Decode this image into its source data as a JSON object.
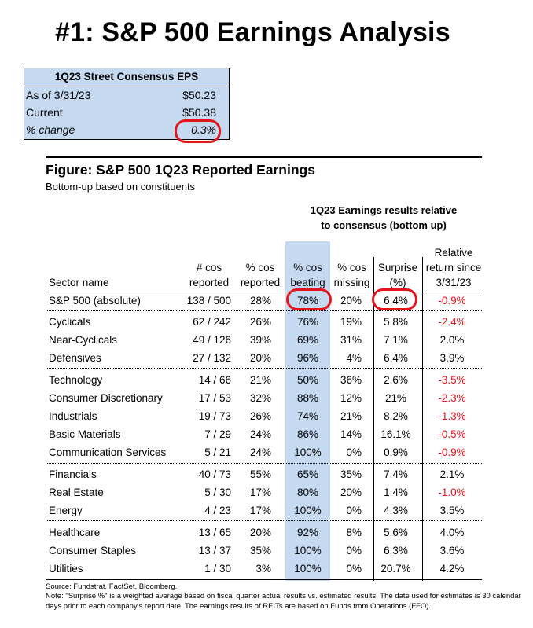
{
  "title": "#1: S&P 500 Earnings Analysis",
  "eps_box": {
    "header": "1Q23 Street Consensus EPS",
    "rows": [
      {
        "label": "As of  3/31/23",
        "value": "$50.23"
      },
      {
        "label": "Current",
        "value": "$50.38"
      },
      {
        "label": "% change",
        "value": "0.3%"
      }
    ]
  },
  "figure": {
    "title": "Figure: S&P 500 1Q23 Reported Earnings",
    "subtitle": "Bottom-up based on constituents",
    "group_header_line1": "1Q23 Earnings results relative",
    "group_header_line2": "to consensus (bottom up)",
    "columns": {
      "sector": "Sector name",
      "reported_l1": "# cos",
      "reported_l2": "reported",
      "pct_reported_l1": "% cos",
      "pct_reported_l2": "reported",
      "beating_l1": "% cos",
      "beating_l2": "beating",
      "missing_l1": "% cos",
      "missing_l2": "missing",
      "surprise_l1": "Surprise",
      "surprise_l2": "(%)",
      "rel_l1": "Relative",
      "rel_l2": "return since",
      "rel_l3": "3/31/23"
    },
    "rows": [
      {
        "sector": "S&P 500 (absolute)",
        "reported": "138 / 500",
        "pct_reported": "28%",
        "beating": "78%",
        "missing": "20%",
        "surprise": "6.4%",
        "rel": "-0.9%"
      },
      {
        "sector": "Cyclicals",
        "reported": "62 / 242",
        "pct_reported": "26%",
        "beating": "76%",
        "missing": "19%",
        "surprise": "5.8%",
        "rel": "-2.4%"
      },
      {
        "sector": "Near-Cyclicals",
        "reported": "49 / 126",
        "pct_reported": "39%",
        "beating": "69%",
        "missing": "31%",
        "surprise": "7.1%",
        "rel": "2.0%"
      },
      {
        "sector": "Defensives",
        "reported": "27 / 132",
        "pct_reported": "20%",
        "beating": "96%",
        "missing": "4%",
        "surprise": "6.4%",
        "rel": "3.9%"
      },
      {
        "sector": "Technology",
        "reported": "14 / 66",
        "pct_reported": "21%",
        "beating": "50%",
        "missing": "36%",
        "surprise": "2.6%",
        "rel": "-3.5%"
      },
      {
        "sector": "Consumer Discretionary",
        "reported": "17 / 53",
        "pct_reported": "32%",
        "beating": "88%",
        "missing": "12%",
        "surprise": "21%",
        "rel": "-2.3%"
      },
      {
        "sector": "Industrials",
        "reported": "19 / 73",
        "pct_reported": "26%",
        "beating": "74%",
        "missing": "21%",
        "surprise": "8.2%",
        "rel": "-1.3%"
      },
      {
        "sector": "Basic Materials",
        "reported": "7 / 29",
        "pct_reported": "24%",
        "beating": "86%",
        "missing": "14%",
        "surprise": "16.1%",
        "rel": "-0.5%"
      },
      {
        "sector": "Communication Services",
        "reported": "5 / 21",
        "pct_reported": "24%",
        "beating": "100%",
        "missing": "0%",
        "surprise": "0.9%",
        "rel": "-0.9%"
      },
      {
        "sector": "Financials",
        "reported": "40 / 73",
        "pct_reported": "55%",
        "beating": "65%",
        "missing": "35%",
        "surprise": "7.4%",
        "rel": "2.1%"
      },
      {
        "sector": "Real Estate",
        "reported": "5 / 30",
        "pct_reported": "17%",
        "beating": "80%",
        "missing": "20%",
        "surprise": "1.4%",
        "rel": "-1.0%"
      },
      {
        "sector": "Energy",
        "reported": "4 / 23",
        "pct_reported": "17%",
        "beating": "100%",
        "missing": "0%",
        "surprise": "4.3%",
        "rel": "3.5%"
      },
      {
        "sector": "Healthcare",
        "reported": "13 / 65",
        "pct_reported": "20%",
        "beating": "92%",
        "missing": "8%",
        "surprise": "5.6%",
        "rel": "4.0%"
      },
      {
        "sector": "Consumer Staples",
        "reported": "13 / 37",
        "pct_reported": "35%",
        "beating": "100%",
        "missing": "0%",
        "surprise": "6.3%",
        "rel": "3.6%"
      },
      {
        "sector": "Utilities",
        "reported": "1 / 30",
        "pct_reported": "3%",
        "beating": "100%",
        "missing": "0%",
        "surprise": "20.7%",
        "rel": "4.2%"
      }
    ],
    "source": "Source: Fundstrat, FactSet, Bloomberg.",
    "note": "Note: \"Surprise %\" is a weighted average based on fiscal quarter actual results vs. estimated results.  The date used for estimates is 30 calendar days prior to each company's report date. The earnings results of REITs are based on Funds from Operations (FFO)."
  },
  "colors": {
    "highlight": "#c5d9f1",
    "negative": "#e3141b",
    "circle": "#e3141b"
  }
}
